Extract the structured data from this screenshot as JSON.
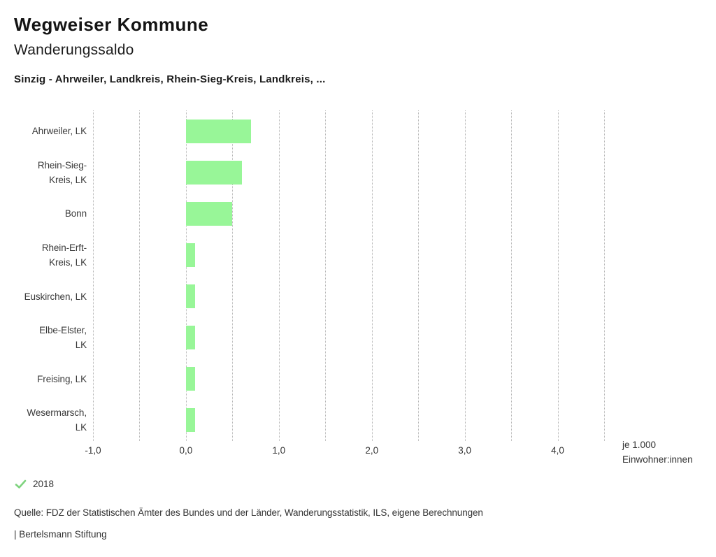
{
  "header": {
    "title": "Wegweiser Kommune",
    "subtitle": "Wanderungssaldo",
    "selection": "Sinzig - Ahrweiler, Landkreis, Rhein-Sieg-Kreis, Landkreis, ..."
  },
  "chart_data": {
    "type": "bar",
    "orientation": "horizontal",
    "title": "Wanderungssaldo",
    "categories": [
      "Ahrweiler, LK",
      "Rhein-Sieg-Kreis, LK",
      "Bonn",
      "Rhein-Erft-Kreis, LK",
      "Euskirchen, LK",
      "Elbe-Elster, LK",
      "Freising, LK",
      "Wesermarsch, LK"
    ],
    "category_display": [
      "Ahrweiler, LK",
      "Rhein-Sieg-\nKreis, LK",
      "Bonn",
      "Rhein-Erft-\nKreis, LK",
      "Euskirchen, LK",
      "Elbe-Elster,\nLK",
      "Freising, LK",
      "Wesermarsch,\nLK"
    ],
    "series": [
      {
        "name": "2018",
        "values": [
          0.7,
          0.6,
          0.5,
          0.1,
          0.1,
          0.1,
          0.1,
          0.1
        ]
      }
    ],
    "xlim": [
      -1.0,
      4.5
    ],
    "gridline_step": 0.5,
    "grid": "dotted-vertical",
    "x_ticks": [
      -1.0,
      0.0,
      1.0,
      2.0,
      3.0,
      4.0
    ],
    "x_tick_labels": [
      "-1,0",
      "0,0",
      "1,0",
      "2,0",
      "3,0",
      "4,0"
    ],
    "xlabel": "je 1.000\nEinwohner:innen",
    "bar_color": "#98f698",
    "legend_position": "bottom-left"
  },
  "footer": {
    "legend_year": "2018",
    "legend_check_color": "#7ed37e",
    "source": "Quelle: FDZ der Statistischen Ämter des Bundes und der Länder, Wanderungsstatistik, ILS, eigene Berechnungen",
    "branding": "| Bertelsmann Stiftung"
  }
}
